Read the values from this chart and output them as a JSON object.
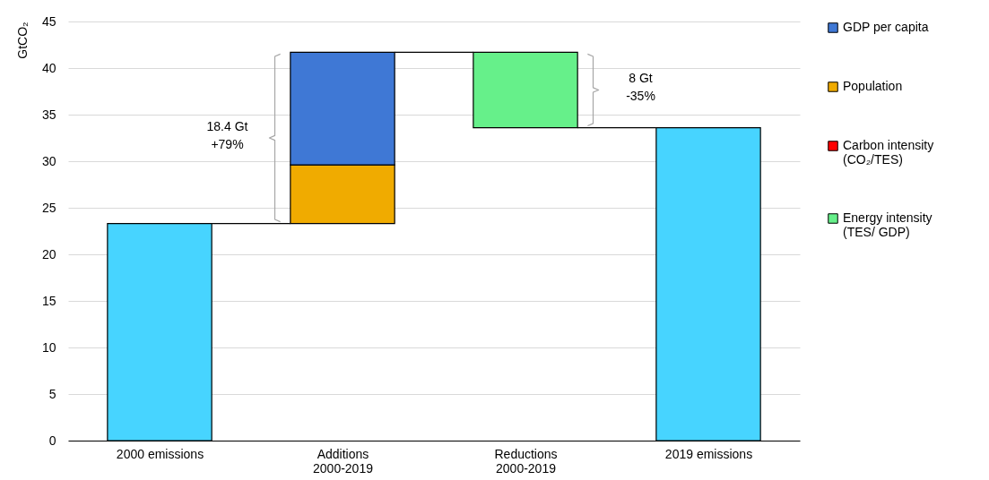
{
  "chart_data": {
    "type": "bar",
    "ylabel": "GtCO₂",
    "categories": [
      "2000 emissions",
      "Additions\n2000-2019",
      "Reductions\n2000-2019",
      "2019 emissions"
    ],
    "series": [
      {
        "color": "#47d4ff",
        "values": [
          23.3,
          null,
          null,
          33.6
        ]
      },
      {
        "name": "Population",
        "color": "#f0ab00",
        "values": [
          null,
          6.3,
          null,
          null
        ],
        "base": [
          null,
          23.3,
          null,
          null
        ]
      },
      {
        "name": "GDP per capita",
        "color": "#3f78d5",
        "values": [
          null,
          12.1,
          null,
          null
        ],
        "base": [
          null,
          29.6,
          null,
          null
        ]
      },
      {
        "name": "Carbon intensity\n(CO₂/TES)",
        "color": "#ff0000",
        "values": [
          null,
          null,
          null,
          null
        ]
      },
      {
        "name": "Energy intensity\n(TES/ GDP)",
        "color": "#66f08a",
        "values": [
          null,
          null,
          -8.1,
          null
        ],
        "base": [
          null,
          null,
          41.7,
          null
        ]
      }
    ],
    "annotations": [
      "18.4 Gt\n+79%",
      "8 Gt\n-35%"
    ],
    "ylim": [
      0,
      45
    ],
    "yticks": [
      0,
      5,
      10,
      15,
      20,
      25,
      30,
      35,
      40,
      45
    ],
    "grid": "y",
    "legend": "right"
  }
}
